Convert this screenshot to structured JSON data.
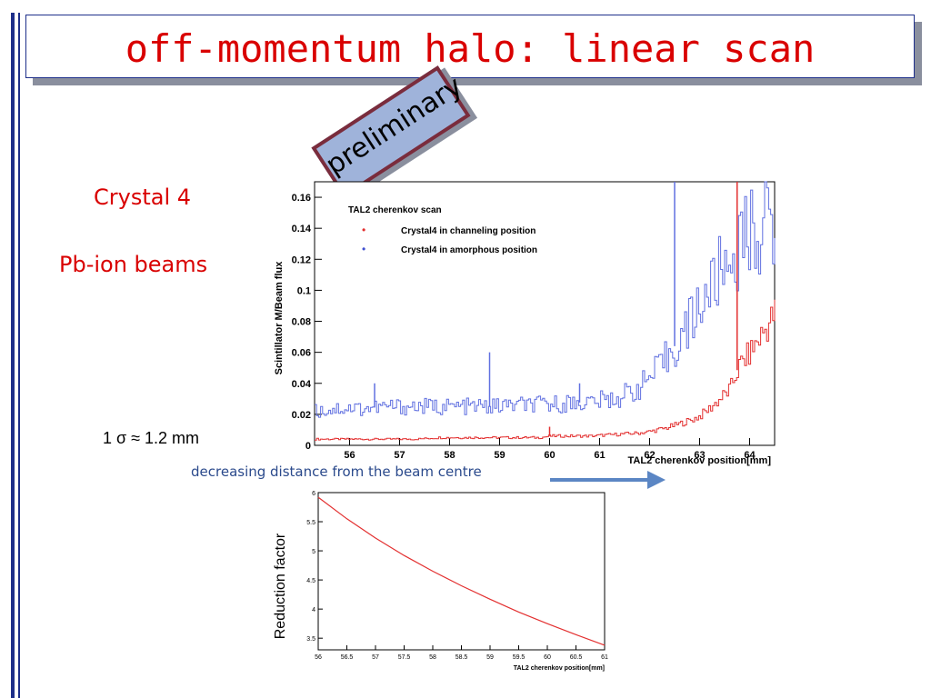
{
  "slide": {
    "title": "off-momentum halo: linear scan",
    "stamp": "preliminary",
    "crystal_label": "Crystal 4",
    "beam_label": "Pb-ion beams",
    "sigma_label": "1 σ ≈ 1.2 mm",
    "arrow_label": "decreasing distance from the beam centre",
    "colors": {
      "title": "#d90000",
      "accent_bar": "#1e2f8a",
      "arrow": "#5b86c4",
      "stamp_fill": "#9fb3da",
      "stamp_border": "#7a2c3c"
    }
  },
  "chart_data": [
    {
      "type": "line",
      "title": "TAL2 cherenkov scan",
      "xlabel": "TAL2 cherenkov position[mm]",
      "ylabel": "Scintillator M/Beam flux",
      "xlim": [
        55.3,
        64.5
      ],
      "ylim": [
        0,
        0.17
      ],
      "xticks": [
        "56",
        "57",
        "58",
        "59",
        "60",
        "61",
        "62",
        "63",
        "64"
      ],
      "yticks": [
        "0",
        "0.02",
        "0.04",
        "0.06",
        "0.08",
        "0.1",
        "0.12",
        "0.14",
        "0.16"
      ],
      "legend_position": "top-left",
      "series": [
        {
          "name": "Crystal4 in channeling position",
          "color": "#e33030",
          "x": [
            55.3,
            55.8,
            56.3,
            56.8,
            57.3,
            57.8,
            58.3,
            58.8,
            59.3,
            59.8,
            60.0,
            60.3,
            60.8,
            61.3,
            61.8,
            62.0,
            62.3,
            62.5,
            62.8,
            63.0,
            63.2,
            63.4,
            63.6,
            63.7,
            63.8,
            64.0,
            64.2,
            64.4,
            64.5
          ],
          "y": [
            0.004,
            0.004,
            0.004,
            0.004,
            0.004,
            0.005,
            0.005,
            0.005,
            0.005,
            0.005,
            0.006,
            0.006,
            0.006,
            0.007,
            0.008,
            0.009,
            0.011,
            0.013,
            0.016,
            0.019,
            0.024,
            0.03,
            0.036,
            0.045,
            0.052,
            0.06,
            0.07,
            0.08,
            0.085
          ]
        },
        {
          "name": "Crystal4 in amorphous position",
          "color": "#6070e0",
          "x": [
            55.3,
            55.8,
            56.3,
            56.8,
            57.3,
            57.8,
            58.3,
            58.8,
            59.3,
            59.8,
            60.3,
            60.8,
            61.3,
            61.5,
            61.8,
            62.0,
            62.2,
            62.4,
            62.6,
            62.8,
            63.0,
            63.2,
            63.4,
            63.6,
            63.8,
            64.0,
            64.2,
            64.4,
            64.5
          ],
          "y": [
            0.022,
            0.024,
            0.024,
            0.025,
            0.025,
            0.025,
            0.025,
            0.025,
            0.026,
            0.026,
            0.027,
            0.028,
            0.03,
            0.033,
            0.038,
            0.044,
            0.05,
            0.06,
            0.068,
            0.08,
            0.092,
            0.1,
            0.112,
            0.12,
            0.128,
            0.138,
            0.14,
            0.145,
            0.148
          ]
        }
      ],
      "spikes": [
        {
          "series": "Crystal4 in amorphous position",
          "x": 56.5,
          "y": 0.04
        },
        {
          "series": "Crystal4 in amorphous position",
          "x": 58.8,
          "y": 0.06
        },
        {
          "series": "Crystal4 in amorphous position",
          "x": 60.6,
          "y": 0.04
        },
        {
          "series": "Crystal4 in amorphous position",
          "x": 62.5,
          "y": 0.17
        },
        {
          "series": "Crystal4 in channeling position",
          "x": 60.0,
          "y": 0.012
        },
        {
          "series": "Crystal4 in channeling position",
          "x": 63.75,
          "y": 0.17
        }
      ],
      "grid": false
    },
    {
      "type": "line",
      "xlabel": "TAL2 cherenkov position[mm]",
      "ylabel": "Reduction factor",
      "xlim": [
        56,
        61
      ],
      "ylim": [
        3.3,
        6
      ],
      "xticks": [
        "56",
        "56.5",
        "57",
        "57.5",
        "58",
        "58.5",
        "59",
        "59.5",
        "60",
        "60.5",
        "61"
      ],
      "yticks": [
        "3.5",
        "4",
        "4.5",
        "5",
        "5.5",
        "6"
      ],
      "series": [
        {
          "color": "#e33030",
          "x": [
            56.0,
            56.5,
            57.0,
            57.5,
            58.0,
            58.5,
            59.0,
            59.5,
            60.0,
            60.5,
            61.0
          ],
          "y": [
            5.92,
            5.55,
            5.22,
            4.92,
            4.65,
            4.4,
            4.17,
            3.95,
            3.75,
            3.56,
            3.38
          ]
        }
      ],
      "grid": false
    }
  ]
}
